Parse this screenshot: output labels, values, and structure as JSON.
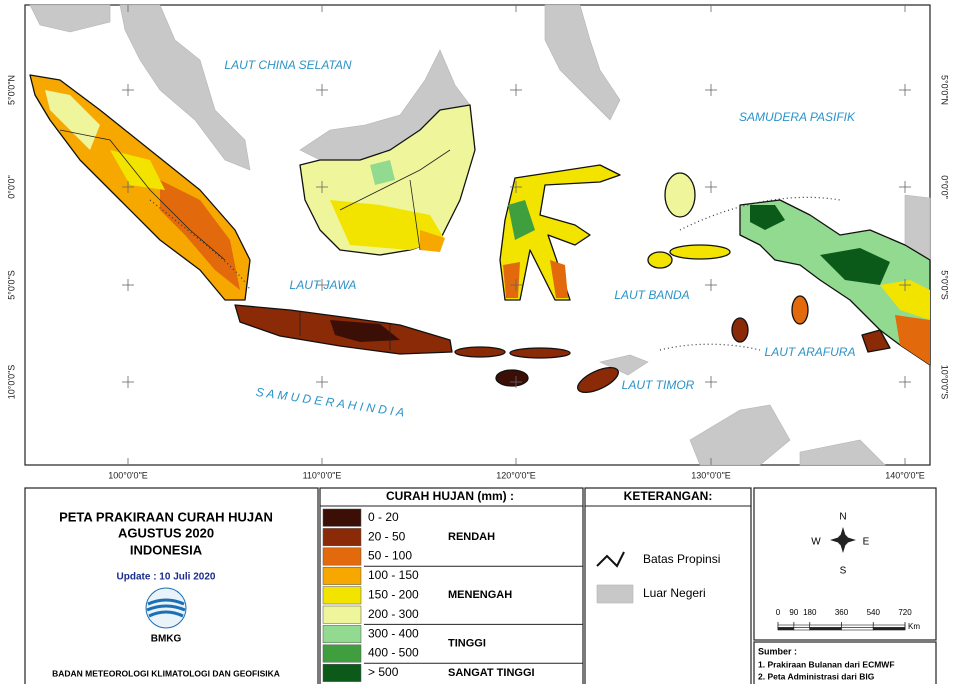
{
  "map": {
    "seas": [
      "LAUT CHINA SELATAN",
      "SAMUDERA PASIFIK",
      "LAUT JAWA",
      "LAUT BANDA",
      "LAUT ARAFURA",
      "LAUT TIMOR",
      "S A M U D E R A   H I N D I A"
    ],
    "lon_ticks": [
      "100°0'0\"E",
      "110°0'0\"E",
      "120°0'0\"E",
      "130°0'0\"E",
      "140°0'0\"E"
    ],
    "lat_ticks": [
      "5°0'0\"N",
      "0°0'0\"",
      "5°0'0\"S",
      "10°0'0\"S"
    ]
  },
  "title": {
    "lines": [
      "PETA PRAKIRAAN CURAH HUJAN",
      "AGUSTUS 2020",
      "INDONESIA"
    ],
    "update": "Update : 10 Juli  2020",
    "logo": "BMKG",
    "agency": "BADAN METEOROLOGI KLIMATOLOGI DAN GEOFISIKA"
  },
  "legend": {
    "title": "CURAH HUJAN (mm) :",
    "groups": [
      {
        "label": "RENDAH",
        "classes": [
          {
            "label": "0 - 20",
            "color": "#3b0f06"
          },
          {
            "label": "20 - 50",
            "color": "#8b2a06"
          },
          {
            "label": "50 - 100",
            "color": "#e26a0c"
          }
        ]
      },
      {
        "label": "MENENGAH",
        "classes": [
          {
            "label": "100 - 150",
            "color": "#f7a800"
          },
          {
            "label": "150 - 200",
            "color": "#f3e400"
          },
          {
            "label": "200 - 300",
            "color": "#eef59a"
          }
        ]
      },
      {
        "label": "TINGGI",
        "classes": [
          {
            "label": "300 - 400",
            "color": "#92da8f"
          },
          {
            "label": "400 - 500",
            "color": "#3f9f3f"
          }
        ]
      },
      {
        "label": "SANGAT TINGGI",
        "classes": [
          {
            "label": "> 500",
            "color": "#0b5a1a"
          }
        ]
      }
    ]
  },
  "keterangan": {
    "title": "KETERANGAN:",
    "items": [
      "Batas Propinsi",
      "Luar Negeri"
    ]
  },
  "compass": {
    "n": "N",
    "e": "E",
    "s": "S",
    "w": "W"
  },
  "scale": {
    "ticks": [
      0,
      90,
      180,
      360,
      540,
      720
    ],
    "unit": "Km",
    "max": 720
  },
  "sources": {
    "title": "Sumber :",
    "items": [
      "1. Prakiraan Bulanan dari ECMWF",
      "2. Peta Administrasi dari BIG"
    ]
  }
}
